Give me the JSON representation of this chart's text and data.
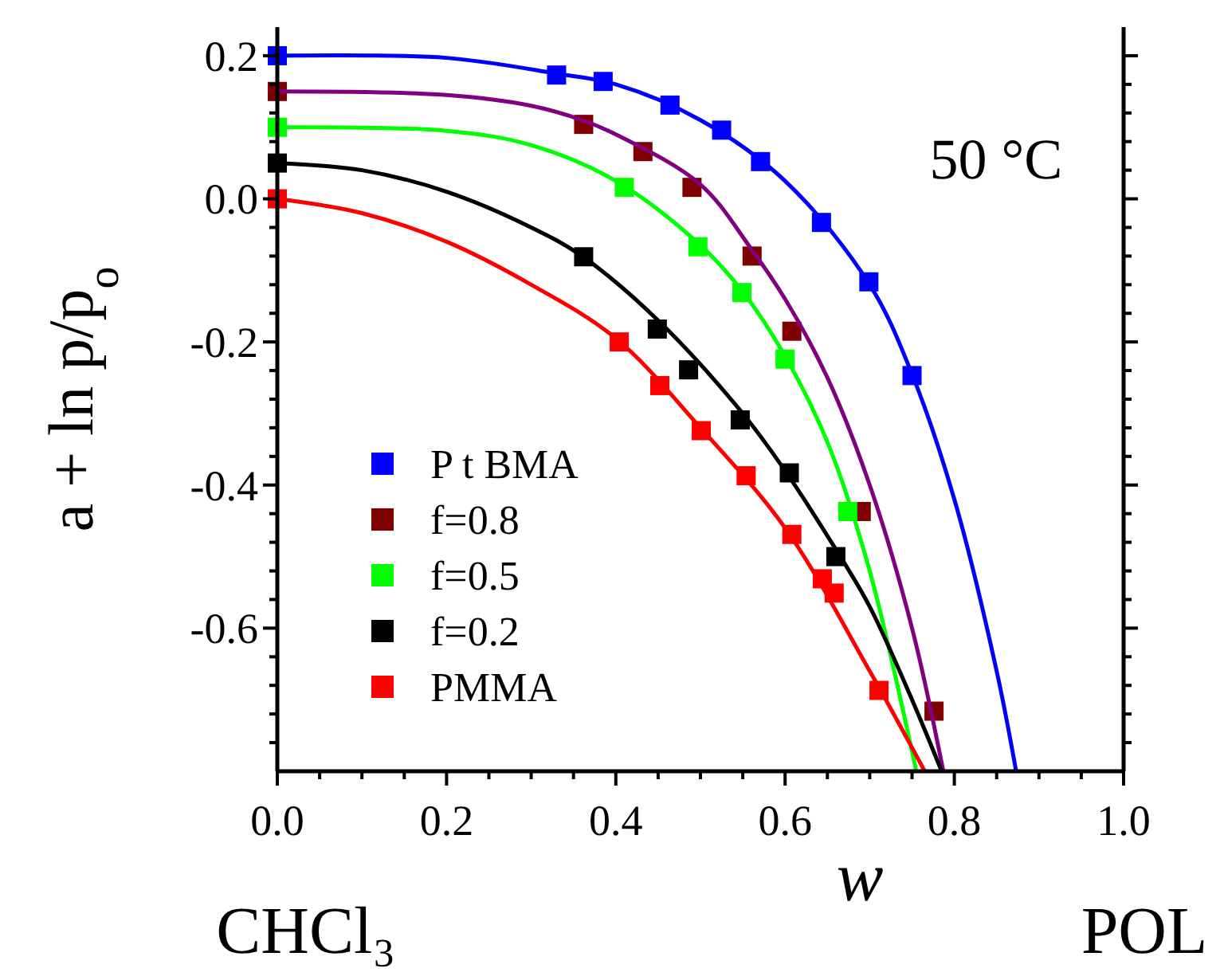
{
  "chart_data": {
    "type": "scatter",
    "xlabel": "w",
    "ylabel": "a + ln p/p$_{o}$",
    "annotations": [
      "50 °C",
      "CHCl₃",
      "POL"
    ],
    "xlim": [
      0,
      1
    ],
    "ylim": [
      -0.8,
      0.24
    ],
    "xticks": [
      {
        "value": 0,
        "label": "0.0"
      },
      {
        "value": 0.05,
        "label": null
      },
      {
        "value": 0.1,
        "label": null
      },
      {
        "value": 0.15,
        "label": null
      },
      0.2,
      {
        "value": 0.25,
        "label": null
      },
      {
        "value": 0.3,
        "label": null
      },
      {
        "value": 0.35,
        "label": null
      },
      0.4,
      {
        "value": 0.45,
        "label": null
      },
      {
        "value": 0.5,
        "label": null
      },
      {
        "value": 0.55,
        "label": null
      },
      0.6,
      {
        "value": 0.65,
        "label": null
      },
      {
        "value": 0.7,
        "label": null
      },
      {
        "value": 0.75,
        "label": null
      },
      0.8,
      {
        "value": 0.85,
        "label": null
      },
      {
        "value": 0.9,
        "label": null
      },
      {
        "value": 0.95,
        "label": null
      },
      {
        "value": 1,
        "label": "1.0"
      }
    ],
    "yticks": [
      {
        "value": -0.76,
        "label": null
      },
      {
        "value": -0.72,
        "label": null
      },
      {
        "value": -0.68,
        "label": null
      },
      {
        "value": -0.64,
        "label": null
      },
      -0.6,
      {
        "value": -0.56,
        "label": null
      },
      {
        "value": -0.52,
        "label": null
      },
      {
        "value": -0.48,
        "label": null
      },
      {
        "value": -0.44,
        "label": null
      },
      -0.4,
      {
        "value": -0.36,
        "label": null
      },
      {
        "value": -0.32,
        "label": null
      },
      {
        "value": -0.28,
        "label": null
      },
      {
        "value": -0.24,
        "label": null
      },
      -0.2,
      {
        "value": -0.16,
        "label": null
      },
      {
        "value": -0.12,
        "label": null
      },
      {
        "value": -0.08,
        "label": null
      },
      {
        "value": -0.04,
        "label": null
      },
      {
        "value": 0,
        "label": "0.0"
      },
      {
        "value": 0.04,
        "label": null
      },
      {
        "value": 0.08,
        "label": null
      },
      {
        "value": 0.12,
        "label": null
      },
      {
        "value": 0.16,
        "label": null
      },
      0.2
    ],
    "legend": "bottom left",
    "marker": "square",
    "series": [
      {
        "name": "P t BMA",
        "color": "#0000ff",
        "x": [
          0,
          0.33,
          0.385,
          0.464,
          0.525,
          0.571,
          0.643,
          0.699,
          0.75
        ],
        "values": [
          0.2,
          0.173,
          0.164,
          0.131,
          0.096,
          0.052,
          -0.033,
          -0.116,
          -0.247
        ]
      },
      {
        "name": "f=0.8",
        "color": "#800000",
        "x": [
          0,
          0.362,
          0.432,
          0.49,
          0.561,
          0.608,
          0.69,
          0.776
        ],
        "values": [
          0.15,
          0.104,
          0.066,
          0.016,
          -0.08,
          -0.185,
          -0.437,
          -0.716
        ]
      },
      {
        "name": "f=0.5",
        "color": "#00ff00",
        "x": [
          0,
          0.41,
          0.497,
          0.549,
          0.6,
          0.674
        ],
        "values": [
          0.1,
          0.016,
          -0.067,
          -0.131,
          -0.224,
          -0.437
        ]
      },
      {
        "name": "f=0.2",
        "color": "#000000",
        "x": [
          0,
          0.362,
          0.449,
          0.486,
          0.547,
          0.605,
          0.66
        ],
        "values": [
          0.05,
          -0.081,
          -0.182,
          -0.239,
          -0.309,
          -0.383,
          -0.5
        ]
      },
      {
        "name": "PMMA",
        "color": "#ff0000",
        "x": [
          0,
          0.404,
          0.452,
          0.501,
          0.554,
          0.608,
          0.644,
          0.658,
          0.711
        ],
        "values": [
          0,
          -0.2,
          -0.261,
          -0.324,
          -0.387,
          -0.469,
          -0.531,
          -0.551,
          -0.687
        ]
      },
      {
        "type": "line",
        "marker": "none",
        "color": "#0000ff",
        "x": [
          0,
          0.2,
          0.33,
          0.4,
          0.5,
          0.6,
          0.7,
          0.75,
          0.8,
          0.85,
          0.873
        ],
        "values": [
          0.2,
          0.197,
          0.175,
          0.16,
          0.11,
          0.025,
          -0.12,
          -0.245,
          -0.42,
          -0.66,
          -0.8
        ]
      },
      {
        "type": "line",
        "marker": "none",
        "color": "#800080",
        "x": [
          0,
          0.2,
          0.3,
          0.36,
          0.4,
          0.5,
          0.56,
          0.6,
          0.65,
          0.7,
          0.75,
          0.787
        ],
        "values": [
          0.15,
          0.145,
          0.13,
          0.11,
          0.09,
          0.02,
          -0.07,
          -0.14,
          -0.25,
          -0.4,
          -0.6,
          -0.8
        ]
      },
      {
        "type": "line",
        "marker": "none",
        "color": "#00ff00",
        "x": [
          0,
          0.2,
          0.3,
          0.4,
          0.5,
          0.55,
          0.6,
          0.65,
          0.7,
          0.755
        ],
        "values": [
          0.1,
          0.095,
          0.075,
          0.025,
          -0.065,
          -0.13,
          -0.22,
          -0.34,
          -0.52,
          -0.8
        ]
      },
      {
        "type": "line",
        "marker": "none",
        "color": "#000000",
        "x": [
          0,
          0.1,
          0.2,
          0.3,
          0.36,
          0.45,
          0.55,
          0.6,
          0.66,
          0.7,
          0.75,
          0.785
        ],
        "values": [
          0.05,
          0.04,
          0.01,
          -0.04,
          -0.08,
          -0.17,
          -0.3,
          -0.38,
          -0.49,
          -0.57,
          -0.7,
          -0.8
        ]
      },
      {
        "type": "line",
        "marker": "none",
        "color": "#ff0000",
        "x": [
          0,
          0.1,
          0.2,
          0.3,
          0.4,
          0.5,
          0.6,
          0.7,
          0.765
        ],
        "values": [
          0,
          -0.02,
          -0.06,
          -0.12,
          -0.195,
          -0.32,
          -0.46,
          -0.66,
          -0.8
        ]
      }
    ]
  }
}
